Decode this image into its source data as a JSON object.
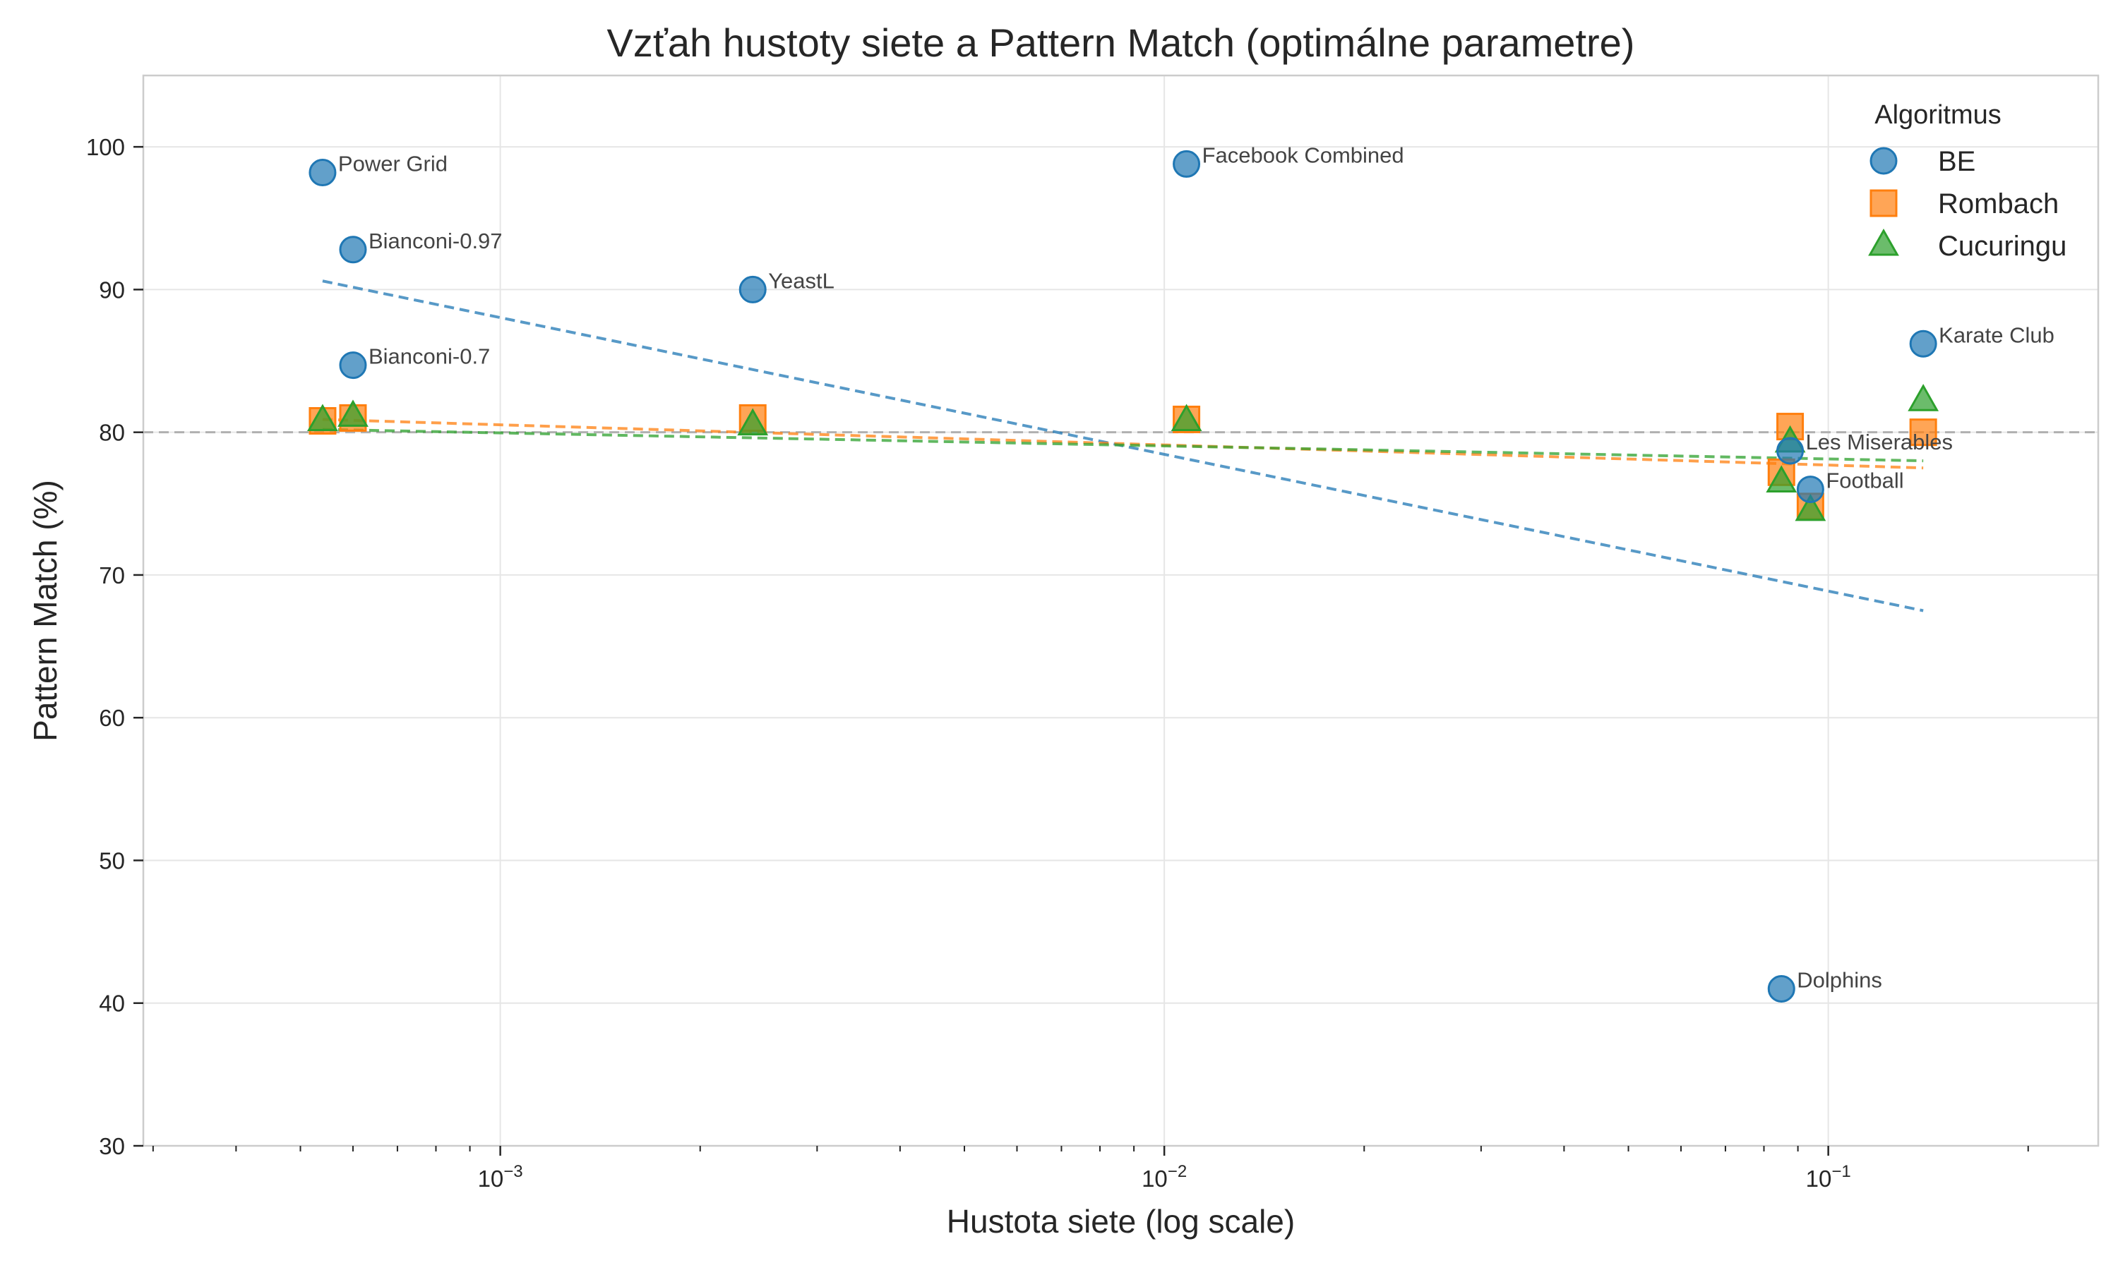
{
  "chart_data": {
    "type": "scatter",
    "title": "Vzťah hustoty siete a Pattern Match (optimálne parametre)",
    "xlabel": "Hustota siete (log scale)",
    "ylabel": "Pattern Match (%)",
    "x_scale": "log",
    "xlim": [
      0.00029,
      0.255
    ],
    "ylim": [
      30,
      105
    ],
    "yticks": [
      30,
      40,
      50,
      60,
      70,
      80,
      90,
      100
    ],
    "xticks": [
      {
        "value": 0.001,
        "base": "10",
        "exp": "−3"
      },
      {
        "value": 0.01,
        "base": "10",
        "exp": "−2"
      },
      {
        "value": 0.1,
        "base": "10",
        "exp": "−1"
      }
    ],
    "grid": true,
    "reference_line_y": 80,
    "legend": {
      "title": "Algoritmus",
      "placement": "top-right"
    },
    "series": [
      {
        "name": "BE",
        "marker": "circle",
        "color": "#1f77b4",
        "points": [
          {
            "x": 0.00054,
            "y": 98.2,
            "label": "Power Grid"
          },
          {
            "x": 0.0006,
            "y": 92.8,
            "label": "Bianconi-0.97"
          },
          {
            "x": 0.0006,
            "y": 84.7,
            "label": "Bianconi-0.7"
          },
          {
            "x": 0.0024,
            "y": 90.0,
            "label": "YeastL"
          },
          {
            "x": 0.0108,
            "y": 98.8,
            "label": "Facebook Combined"
          },
          {
            "x": 0.139,
            "y": 86.2,
            "label": "Karate Club"
          },
          {
            "x": 0.0876,
            "y": 78.7,
            "label": "Les Miserables"
          },
          {
            "x": 0.094,
            "y": 76.0,
            "label": "Football"
          },
          {
            "x": 0.085,
            "y": 41.0,
            "label": "Dolphins"
          }
        ],
        "trend": {
          "x": [
            0.00054,
            0.139
          ],
          "y": [
            90.6,
            67.5
          ]
        }
      },
      {
        "name": "Rombach",
        "marker": "square",
        "color": "#ff7f0e",
        "points": [
          {
            "x": 0.00054,
            "y": 80.8
          },
          {
            "x": 0.0006,
            "y": 81.0
          },
          {
            "x": 0.0024,
            "y": 81.0
          },
          {
            "x": 0.0108,
            "y": 80.9
          },
          {
            "x": 0.139,
            "y": 80.0
          },
          {
            "x": 0.0876,
            "y": 80.4
          },
          {
            "x": 0.094,
            "y": 74.8
          },
          {
            "x": 0.085,
            "y": 77.2
          }
        ],
        "trend": {
          "x": [
            0.00054,
            0.139
          ],
          "y": [
            80.9,
            77.5
          ]
        }
      },
      {
        "name": "Cucuringu",
        "marker": "triangle",
        "color": "#2ca02c",
        "points": [
          {
            "x": 0.00054,
            "y": 80.8
          },
          {
            "x": 0.0006,
            "y": 81.1
          },
          {
            "x": 0.0024,
            "y": 80.5
          },
          {
            "x": 0.0108,
            "y": 80.8
          },
          {
            "x": 0.139,
            "y": 82.2
          },
          {
            "x": 0.0876,
            "y": 79.3
          },
          {
            "x": 0.094,
            "y": 74.5
          },
          {
            "x": 0.085,
            "y": 76.5
          }
        ],
        "trend": {
          "x": [
            0.00054,
            0.139
          ],
          "y": [
            80.2,
            78.0
          ]
        }
      }
    ]
  }
}
